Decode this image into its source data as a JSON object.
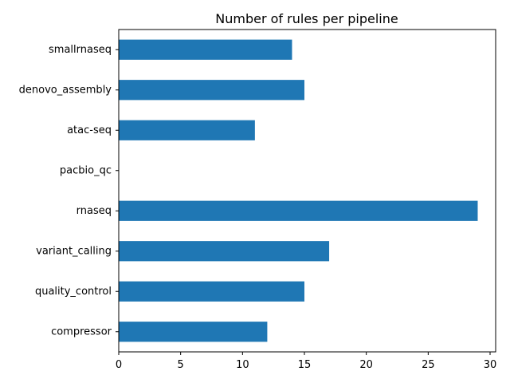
{
  "chart_data": {
    "type": "bar",
    "orientation": "horizontal",
    "title": "Number of rules per pipeline",
    "xlabel": "",
    "ylabel": "",
    "categories": [
      "smallrnaseq",
      "denovo_assembly",
      "atac-seq",
      "pacbio_qc",
      "rnaseq",
      "variant_calling",
      "quality_control",
      "compressor"
    ],
    "values": [
      14,
      15,
      11,
      0,
      29,
      17,
      15,
      12
    ],
    "xlim": [
      0,
      30.45
    ],
    "xticks": [
      0,
      5,
      10,
      15,
      20,
      25,
      30
    ],
    "grid": false,
    "legend": "none",
    "bar_color": "#1f77b4"
  }
}
